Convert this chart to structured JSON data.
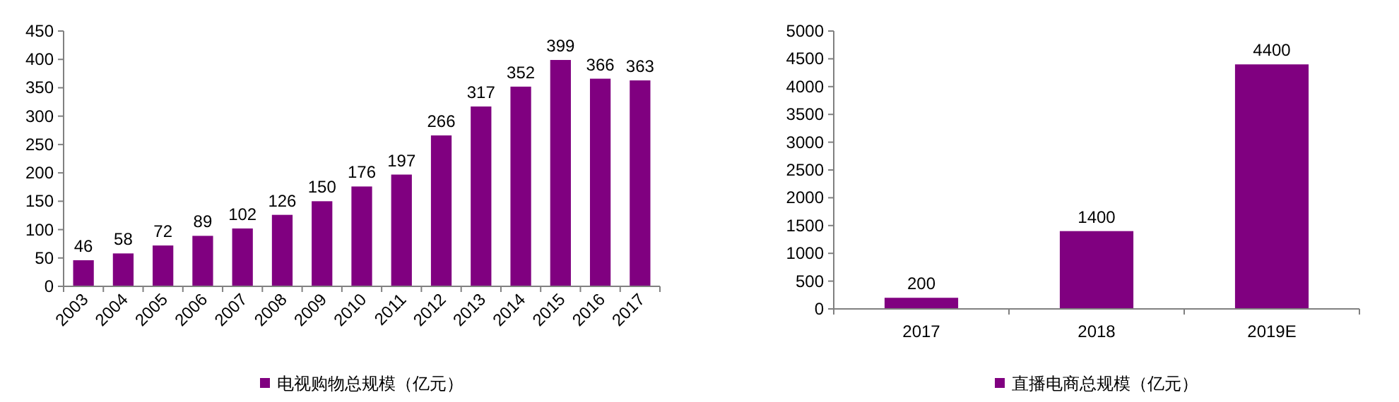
{
  "chart_data": [
    {
      "type": "bar",
      "categories": [
        "2003",
        "2004",
        "2005",
        "2006",
        "2007",
        "2008",
        "2009",
        "2010",
        "2011",
        "2012",
        "2013",
        "2014",
        "2015",
        "2016",
        "2017"
      ],
      "series": [
        {
          "name": "电视购物总规模（亿元）",
          "color": "#800080",
          "values": [
            46,
            58,
            72,
            89,
            102,
            126,
            150,
            176,
            197,
            266,
            317,
            352,
            399,
            366,
            363
          ]
        }
      ],
      "ylim": [
        0,
        450
      ],
      "yticks": [
        0,
        50,
        100,
        150,
        200,
        250,
        300,
        350,
        400,
        450
      ],
      "data_labels": true,
      "legend": "bottom",
      "grid": false
    },
    {
      "type": "bar",
      "categories": [
        "2017",
        "2018",
        "2019E"
      ],
      "series": [
        {
          "name": "直播电商总规模（亿元）",
          "color": "#800080",
          "values": [
            200,
            1400,
            4400
          ]
        }
      ],
      "ylim": [
        0,
        5000
      ],
      "yticks": [
        0,
        500,
        1000,
        1500,
        2000,
        2500,
        3000,
        3500,
        4000,
        4500,
        5000
      ],
      "data_labels": true,
      "legend": "bottom",
      "grid": false
    }
  ]
}
